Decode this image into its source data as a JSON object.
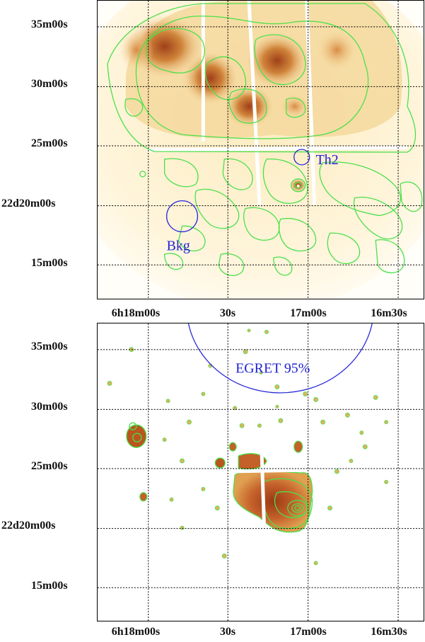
{
  "top_panel": {
    "y_ticks": [
      "35m00s",
      "30m00s",
      "25m00s",
      "22d20m00s",
      "15m00s"
    ],
    "x_ticks": [
      "6h18m00s",
      "30s",
      "17m00s",
      "16m30s"
    ],
    "regions": [
      {
        "label": "Th2",
        "color": "#2a2ad8"
      },
      {
        "label": "Bkg",
        "color": "#2a2ad8"
      }
    ]
  },
  "bottom_panel": {
    "y_ticks": [
      "35m00s",
      "30m00s",
      "25m00s",
      "22d20m00s",
      "15m00s"
    ],
    "x_ticks": [
      "6h18m00s",
      "30s",
      "17m00s",
      "16m30s"
    ],
    "regions": [
      {
        "label": "EGRET 95%",
        "color": "#2a2ad8"
      }
    ]
  },
  "colors": {
    "contour": "#4be04b",
    "emission_dark": "#b8561e",
    "emission_mid": "#e0a050",
    "emission_light": "#f6dfa2",
    "background_glow": "#fff6d6",
    "grid": "#000000"
  }
}
